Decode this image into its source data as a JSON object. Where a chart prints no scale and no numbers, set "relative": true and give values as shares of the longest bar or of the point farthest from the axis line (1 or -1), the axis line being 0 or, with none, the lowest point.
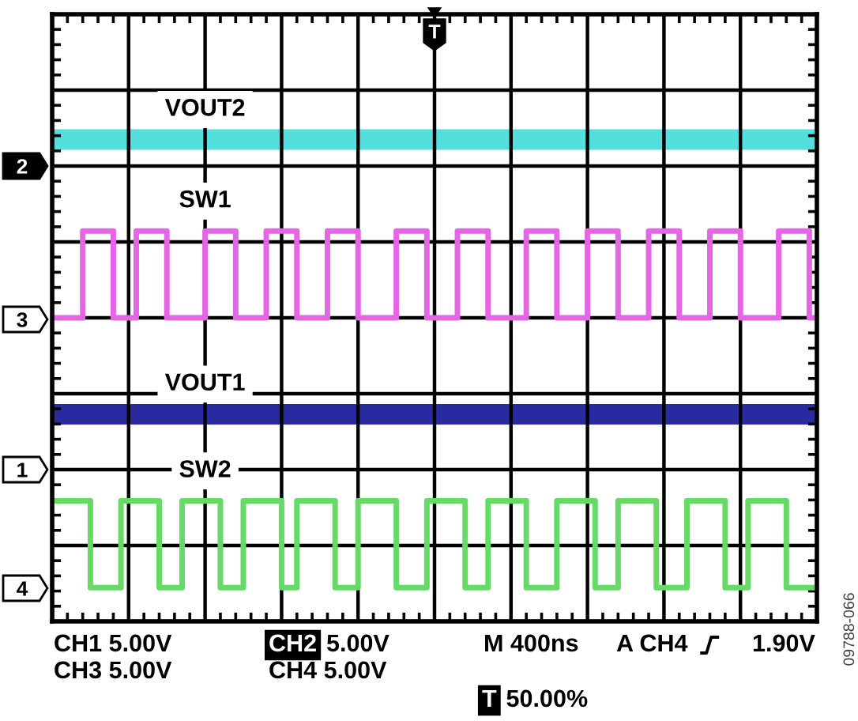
{
  "chart_data": {
    "type": "line",
    "relative": true,
    "grid": true,
    "line_style": "solid",
    "categories": [
      null,
      null,
      null,
      null,
      null,
      null,
      null,
      null,
      null,
      null,
      null,
      null,
      null,
      null,
      null,
      null,
      null,
      null,
      null,
      null,
      null,
      null,
      null,
      null,
      null,
      null,
      null,
      null,
      null,
      null,
      null,
      null,
      null,
      null,
      null,
      null,
      null,
      null,
      null,
      null,
      null,
      null,
      null,
      null,
      null,
      null,
      null,
      null,
      null,
      null,
      null,
      null,
      null,
      null,
      null,
      null,
      null,
      null,
      null,
      null,
      null,
      null,
      null,
      null,
      null,
      null,
      null,
      null,
      null,
      null,
      null,
      null,
      null,
      null,
      null,
      null,
      null,
      null,
      null,
      null,
      null,
      null,
      null,
      null,
      null,
      null,
      null,
      null,
      null,
      null,
      null,
      null,
      null,
      null,
      null,
      null,
      null,
      null,
      null,
      null,
      null
    ],
    "series": [
      {
        "name": "VOUT2",
        "color": "#55dede",
        "values": [
          1,
          1,
          1,
          1,
          1,
          1,
          1,
          1,
          1,
          1,
          1,
          1,
          1,
          1,
          1,
          1,
          1,
          1,
          1,
          1,
          1,
          1,
          1,
          1,
          1,
          1,
          1,
          1,
          1,
          1,
          1,
          1,
          1,
          1,
          1,
          1,
          1,
          1,
          1,
          1,
          1,
          1,
          1,
          1,
          1,
          1,
          1,
          1,
          1,
          1,
          1,
          1,
          1,
          1,
          1,
          1,
          1,
          1,
          1,
          1,
          1,
          1,
          1,
          1,
          1,
          1,
          1,
          1,
          1,
          1,
          1,
          1,
          1,
          1,
          1,
          1,
          1,
          1,
          1,
          1,
          1,
          1,
          1,
          1,
          1,
          1,
          1,
          1,
          1,
          1,
          1,
          1,
          1,
          1,
          1,
          1,
          1,
          1,
          1,
          1,
          1
        ]
      },
      {
        "name": "SW1",
        "type": "step",
        "color": "#e466e4",
        "values": [
          0.63,
          0.63,
          0.63,
          0.63,
          0.81,
          0.81,
          0.81,
          0.81,
          0.63,
          0.63,
          0.63,
          0.81,
          0.81,
          0.81,
          0.81,
          0.63,
          0.63,
          0.63,
          0.63,
          0.63,
          0.81,
          0.81,
          0.81,
          0.81,
          0.63,
          0.63,
          0.63,
          0.63,
          0.81,
          0.81,
          0.81,
          0.81,
          0.63,
          0.63,
          0.63,
          0.63,
          0.81,
          0.81,
          0.81,
          0.81,
          0.63,
          0.63,
          0.63,
          0.63,
          0.63,
          0.81,
          0.81,
          0.81,
          0.81,
          0.63,
          0.63,
          0.63,
          0.63,
          0.81,
          0.81,
          0.81,
          0.81,
          0.63,
          0.63,
          0.63,
          0.63,
          0.63,
          0.81,
          0.81,
          0.81,
          0.81,
          0.63,
          0.63,
          0.63,
          0.63,
          0.81,
          0.81,
          0.81,
          0.81,
          0.63,
          0.63,
          0.63,
          0.63,
          0.81,
          0.81,
          0.81,
          0.81,
          0.63,
          0.63,
          0.63,
          0.63,
          0.81,
          0.81,
          0.81,
          0.81,
          0.63,
          0.63,
          0.63,
          0.63,
          0.63,
          0.81,
          0.81,
          0.81,
          0.81,
          0.63,
          0.63
        ]
      },
      {
        "name": "VOUT1",
        "color": "#2a2aa0",
        "values": [
          0.43,
          0.43,
          0.43,
          0.43,
          0.43,
          0.43,
          0.43,
          0.43,
          0.43,
          0.43,
          0.43,
          0.43,
          0.43,
          0.43,
          0.43,
          0.43,
          0.43,
          0.43,
          0.43,
          0.43,
          0.43,
          0.43,
          0.43,
          0.43,
          0.43,
          0.43,
          0.43,
          0.43,
          0.43,
          0.43,
          0.43,
          0.43,
          0.43,
          0.43,
          0.43,
          0.43,
          0.43,
          0.43,
          0.43,
          0.43,
          0.43,
          0.43,
          0.43,
          0.43,
          0.43,
          0.43,
          0.43,
          0.43,
          0.43,
          0.43,
          0.43,
          0.43,
          0.43,
          0.43,
          0.43,
          0.43,
          0.43,
          0.43,
          0.43,
          0.43,
          0.43,
          0.43,
          0.43,
          0.43,
          0.43,
          0.43,
          0.43,
          0.43,
          0.43,
          0.43,
          0.43,
          0.43,
          0.43,
          0.43,
          0.43,
          0.43,
          0.43,
          0.43,
          0.43,
          0.43,
          0.43,
          0.43,
          0.43,
          0.43,
          0.43,
          0.43,
          0.43,
          0.43,
          0.43,
          0.43,
          0.43,
          0.43,
          0.43,
          0.43,
          0.43,
          0.43,
          0.43,
          0.43,
          0.43,
          0.43,
          0.43
        ]
      },
      {
        "name": "SW2",
        "type": "step",
        "color": "#66d966",
        "values": [
          0.25,
          0.25,
          0.25,
          0.25,
          0.25,
          0.07,
          0.07,
          0.07,
          0.07,
          0.25,
          0.25,
          0.25,
          0.25,
          0.25,
          0.07,
          0.07,
          0.07,
          0.25,
          0.25,
          0.25,
          0.25,
          0.25,
          0.07,
          0.07,
          0.07,
          0.25,
          0.25,
          0.25,
          0.25,
          0.25,
          0.07,
          0.07,
          0.25,
          0.25,
          0.25,
          0.25,
          0.25,
          0.07,
          0.07,
          0.07,
          0.25,
          0.25,
          0.25,
          0.25,
          0.25,
          0.07,
          0.07,
          0.07,
          0.07,
          0.25,
          0.25,
          0.25,
          0.25,
          0.25,
          0.07,
          0.07,
          0.07,
          0.25,
          0.25,
          0.25,
          0.25,
          0.25,
          0.07,
          0.07,
          0.07,
          0.07,
          0.25,
          0.25,
          0.25,
          0.25,
          0.25,
          0.07,
          0.07,
          0.07,
          0.25,
          0.25,
          0.25,
          0.25,
          0.25,
          0.07,
          0.07,
          0.07,
          0.07,
          0.25,
          0.25,
          0.25,
          0.25,
          0.25,
          0.07,
          0.07,
          0.07,
          0.25,
          0.25,
          0.25,
          0.25,
          0.25,
          0.07,
          0.07,
          0.07,
          0.07,
          0.07
        ]
      }
    ],
    "annotations": [
      "T",
      "2",
      "3",
      "1",
      "4",
      "CH1 5.00V",
      "CH2 5.00V",
      "M 400ns",
      "A CH4",
      "1.90V",
      "CH3 5.00V",
      "CH4 5.00V",
      "T 50.00%",
      "09788-066"
    ]
  }
}
